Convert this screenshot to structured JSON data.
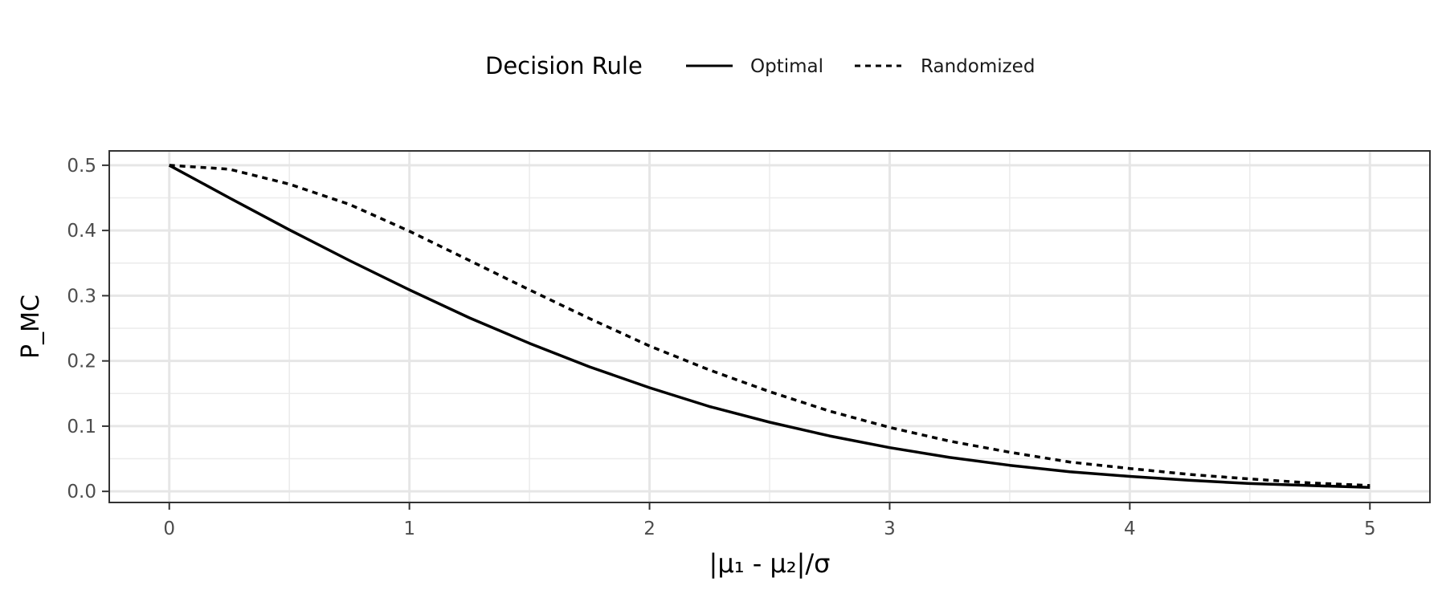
{
  "chart_data": {
    "type": "line",
    "legend": {
      "title": "Decision Rule",
      "position": "top"
    },
    "xlabel": "|μ₁ - μ₂|/σ",
    "ylabel": "P_MC",
    "xlim": [
      -0.25,
      5.25
    ],
    "ylim": [
      -0.017,
      0.522
    ],
    "xticks": [
      0,
      1,
      2,
      3,
      4,
      5
    ],
    "yticks": [
      0.0,
      0.1,
      0.2,
      0.3,
      0.4,
      0.5
    ],
    "xtick_labels": [
      "0",
      "1",
      "2",
      "3",
      "4",
      "5"
    ],
    "ytick_labels": [
      "0.0",
      "0.1",
      "0.2",
      "0.3",
      "0.4",
      "0.5"
    ],
    "grid": true,
    "x": [
      0,
      0.25,
      0.5,
      0.75,
      1.0,
      1.25,
      1.5,
      1.75,
      2.0,
      2.25,
      2.5,
      2.75,
      3.0,
      3.25,
      3.5,
      3.75,
      4.0,
      4.25,
      4.5,
      4.75,
      5.0
    ],
    "series": [
      {
        "name": "Optimal",
        "dash": "solid",
        "color": "#000000",
        "values": [
          0.5,
          0.45,
          0.401,
          0.354,
          0.309,
          0.266,
          0.227,
          0.191,
          0.159,
          0.13,
          0.106,
          0.085,
          0.067,
          0.052,
          0.04,
          0.03,
          0.023,
          0.017,
          0.012,
          0.009,
          0.006
        ]
      },
      {
        "name": "Randomized",
        "dash": "dotted",
        "color": "#000000",
        "values": [
          0.5,
          0.494,
          0.471,
          0.44,
          0.399,
          0.354,
          0.309,
          0.265,
          0.223,
          0.186,
          0.153,
          0.123,
          0.098,
          0.077,
          0.06,
          0.045,
          0.035,
          0.026,
          0.019,
          0.013,
          0.009
        ]
      }
    ]
  }
}
